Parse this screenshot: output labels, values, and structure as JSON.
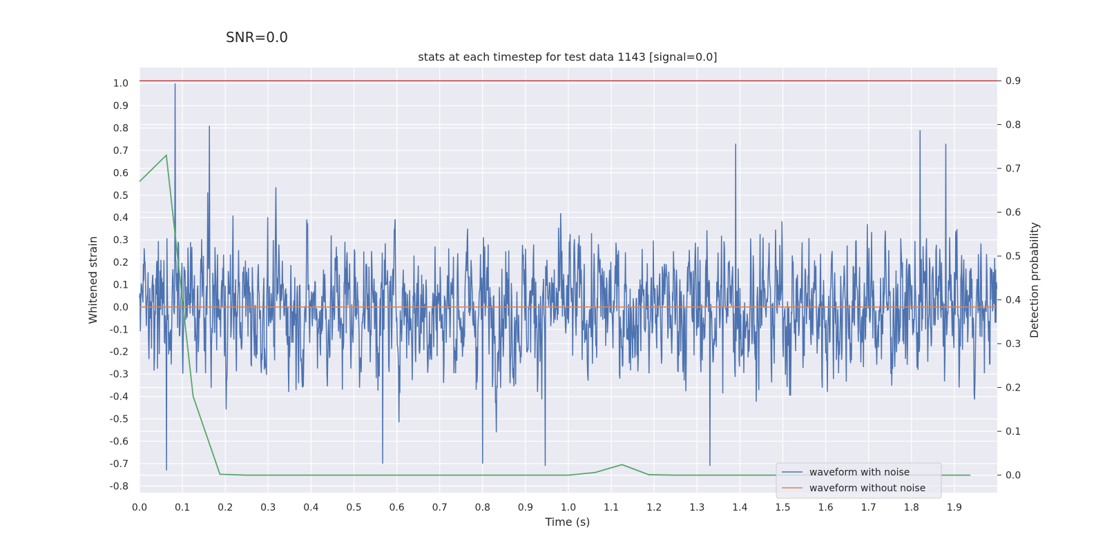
{
  "suptitle": "SNR=0.0",
  "chart_data": {
    "type": "line",
    "title": "stats at each timestep for test data 1143 [signal=0.0]",
    "xlabel": "Time (s)",
    "ylabel": "Whitened strain",
    "y2label": "Detection probability",
    "xlim": [
      0.0,
      2.0
    ],
    "ylim": [
      -0.83,
      1.07
    ],
    "y2lim": [
      -0.04,
      0.93
    ],
    "x_ticks": [
      "0.0",
      "0.1",
      "0.2",
      "0.3",
      "0.4",
      "0.5",
      "0.6",
      "0.7",
      "0.8",
      "0.9",
      "1.0",
      "1.1",
      "1.2",
      "1.3",
      "1.4",
      "1.5",
      "1.6",
      "1.7",
      "1.8",
      "1.9"
    ],
    "y_ticks": [
      "1.0",
      "0.9",
      "0.8",
      "0.7",
      "0.6",
      "0.5",
      "0.4",
      "0.3",
      "0.2",
      "0.1",
      "0.0",
      "-0.1",
      "-0.2",
      "-0.3",
      "-0.4",
      "-0.5",
      "-0.6",
      "-0.7",
      "-0.8"
    ],
    "y2_ticks": [
      "0.9",
      "0.8",
      "0.7",
      "0.6",
      "0.5",
      "0.4",
      "0.3",
      "0.2",
      "0.1",
      "0.0"
    ],
    "grid": true,
    "legend_position": "lower-right",
    "threshold": {
      "axis": "right",
      "value": 0.9,
      "color": "#c44e52"
    },
    "series": [
      {
        "name": "waveform with noise",
        "axis": "left",
        "color": "#4c72b0",
        "note_peaks": [
          [
            0.083,
            1.0
          ],
          [
            0.163,
            0.81
          ],
          [
            1.82,
            0.79
          ],
          [
            1.39,
            0.73
          ],
          [
            1.88,
            0.73
          ],
          [
            0.946,
            -0.71
          ],
          [
            1.33,
            -0.71
          ],
          [
            0.063,
            -0.73
          ],
          [
            0.567,
            -0.7
          ],
          [
            0.8,
            -0.7
          ]
        ]
      },
      {
        "name": "waveform without noise",
        "axis": "left",
        "color": "#dd8452",
        "x": [
          0.0,
          2.0
        ],
        "y": [
          0.0,
          0.0
        ]
      },
      {
        "axis": "right",
        "color": "#55a868",
        "x": [
          0.0,
          0.0625,
          0.125,
          0.1875,
          0.25,
          0.3125,
          0.375,
          0.4375,
          0.5,
          0.5625,
          0.625,
          0.6875,
          0.75,
          0.8125,
          0.875,
          0.9375,
          1.0,
          1.0625,
          1.125,
          1.1875,
          1.25,
          1.3125,
          1.375,
          1.4375,
          1.5,
          1.5625,
          1.625,
          1.6875,
          1.75,
          1.8125,
          1.875,
          1.9375
        ],
        "y": [
          0.67,
          0.73,
          0.18,
          0.002,
          0.0,
          0.0,
          0.0,
          0.0,
          0.0,
          0.0,
          0.0,
          0.0,
          0.0,
          0.0,
          0.0,
          0.0,
          0.0,
          0.006,
          0.024,
          0.001,
          0.0,
          0.0,
          0.0,
          0.0,
          0.0,
          0.0,
          0.0,
          0.0,
          0.0,
          0.0,
          0.0,
          0.0
        ]
      }
    ]
  }
}
